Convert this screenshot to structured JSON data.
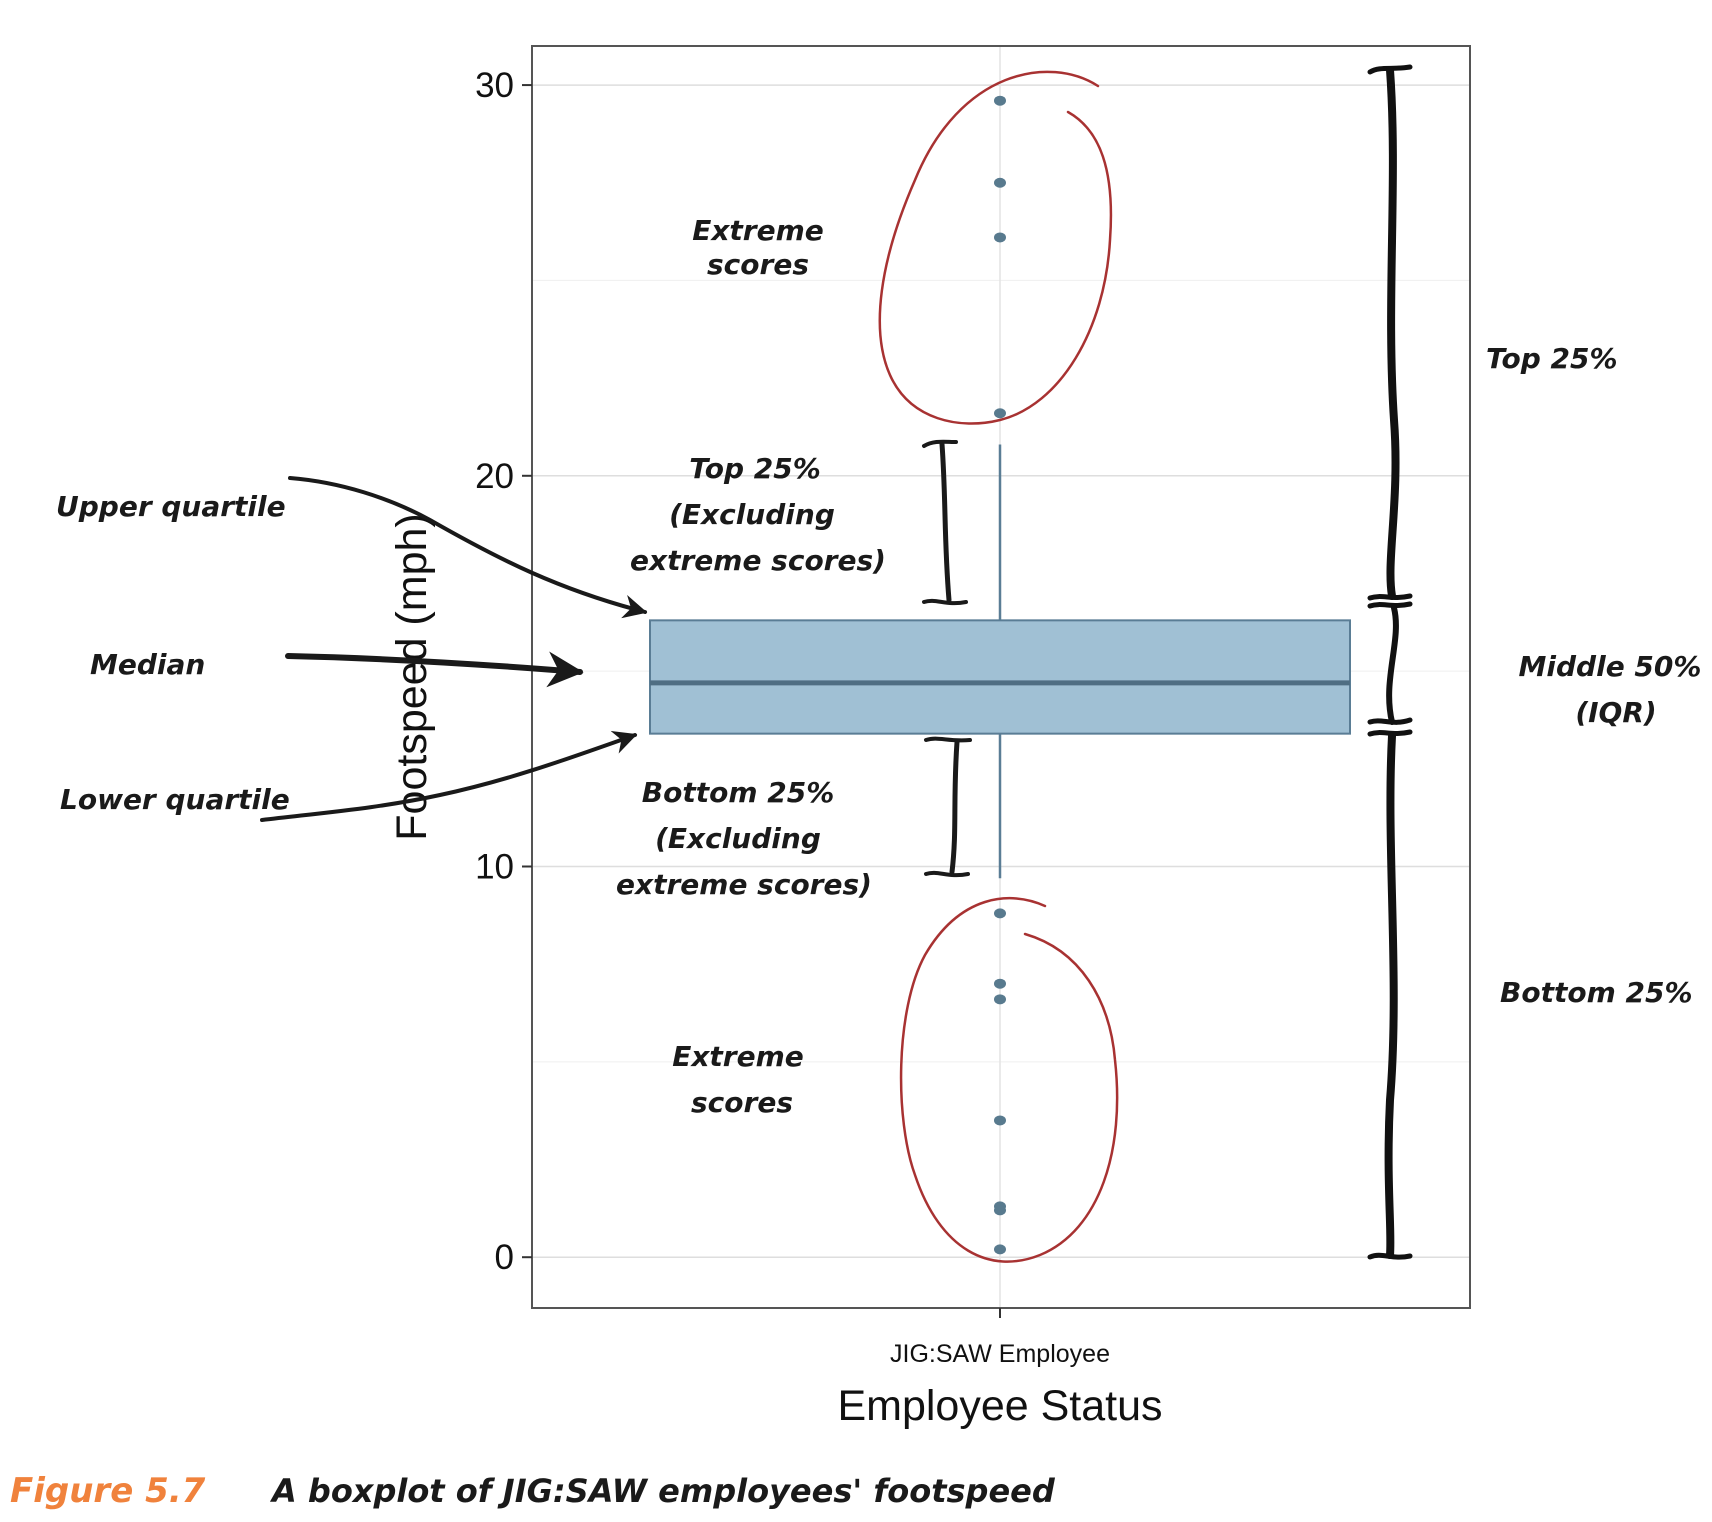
{
  "chart_data": {
    "type": "boxplot",
    "categories": [
      "JIG:SAW Employee"
    ],
    "xlabel": "Employee Status",
    "ylabel": "Footspeed (mph)",
    "ylim": [
      -1.3,
      31
    ],
    "yticks": [
      0,
      10,
      20,
      30
    ],
    "grid": true,
    "box": {
      "whisker_low": 9.7,
      "q1": 13.4,
      "median": 14.7,
      "q3": 16.3,
      "whisker_high": 20.8
    },
    "outliers": [
      29.6,
      27.5,
      26.1,
      21.6,
      8.8,
      7.0,
      6.6,
      3.5,
      1.3,
      1.2,
      0.2
    ]
  },
  "annotations": {
    "upper_quartile": "Upper quartile",
    "median": "Median",
    "lower_quartile": "Lower quartile",
    "extreme_top": [
      "Extreme",
      "scores"
    ],
    "extreme_bottom": [
      "Extreme",
      "scores"
    ],
    "top_excl": [
      "Top 25%",
      "(Excluding",
      "extreme scores)"
    ],
    "bottom_excl": [
      "Bottom 25%",
      "(Excluding",
      "extreme scores)"
    ],
    "top_25": "Top 25%",
    "middle_50": [
      "Middle 50%",
      "(IQR)"
    ],
    "bottom_25": "Bottom 25%"
  },
  "caption": {
    "number": "Figure 5.7",
    "text": "A boxplot of JIG:SAW employees' footspeed"
  },
  "colors": {
    "box_fill": "#a0c0d4",
    "box_stroke": "#5a7d95",
    "median_line": "#4f6e83",
    "outlier": "#587a8e",
    "circle": "#a83232",
    "caption_accent": "#f0823c"
  }
}
